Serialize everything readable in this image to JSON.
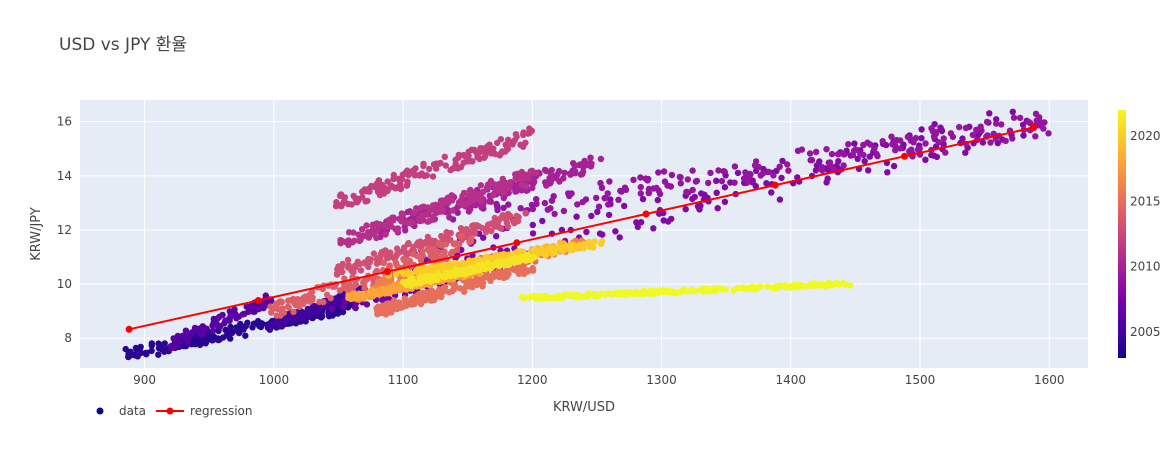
{
  "chart_data": {
    "type": "scatter",
    "title": "USD vs JPY 환율",
    "xlabel": "KRW/USD",
    "ylabel": "KRW/JPY",
    "xlim": [
      850,
      1630
    ],
    "ylim": [
      6.9,
      16.8
    ],
    "x_ticks": [
      900,
      1000,
      1100,
      1200,
      1300,
      1400,
      1500,
      1600
    ],
    "y_ticks": [
      8,
      10,
      12,
      14,
      16
    ],
    "grid": true,
    "legend_position": "bottom-left",
    "colorbar": {
      "title": "",
      "range": [
        2003,
        2022
      ],
      "ticks": [
        2005,
        2010,
        2015,
        2020
      ],
      "colorscale": [
        "#0d0887",
        "#46039f",
        "#7201a8",
        "#9c179e",
        "#bd3786",
        "#d8576b",
        "#ed7953",
        "#fb9f3a",
        "#fdca26",
        "#f0f921"
      ]
    },
    "series": [
      {
        "name": "data",
        "mode": "markers",
        "legend_color": "#0d0887",
        "clusters": [
          {
            "year": 2004,
            "x": [
              890,
              1060
            ],
            "y": [
              7.4,
              9.2
            ],
            "n": 220
          },
          {
            "year": 2005,
            "x": [
              1000,
              1070
            ],
            "y": [
              8.5,
              9.8
            ],
            "n": 120
          },
          {
            "year": 2006,
            "x": [
              920,
              1000
            ],
            "y": [
              7.8,
              9.5
            ],
            "n": 90
          },
          {
            "year": 2007,
            "x": [
              1050,
              1200
            ],
            "y": [
              9.2,
              11.0
            ],
            "n": 80
          },
          {
            "year": 2008,
            "x": [
              1100,
              1580
            ],
            "y": [
              10.5,
              16.1
            ],
            "n": 200
          },
          {
            "year": 2009,
            "x": [
              1150,
              1600
            ],
            "y": [
              12.5,
              16.0
            ],
            "n": 200
          },
          {
            "year": 2010,
            "x": [
              1080,
              1250
            ],
            "y": [
              12.0,
              14.5
            ],
            "n": 180
          },
          {
            "year": 2011,
            "x": [
              1050,
              1200
            ],
            "y": [
              11.5,
              14.0
            ],
            "n": 150
          },
          {
            "year": 2012,
            "x": [
              1050,
              1200
            ],
            "y": [
              13.0,
              15.5
            ],
            "n": 150
          },
          {
            "year": 2013,
            "x": [
              1050,
              1190
            ],
            "y": [
              10.5,
              12.5
            ],
            "n": 150
          },
          {
            "year": 2014,
            "x": [
              1000,
              1150
            ],
            "y": [
              9.0,
              11.5
            ],
            "n": 150
          },
          {
            "year": 2015,
            "x": [
              1080,
              1200
            ],
            "y": [
              9.0,
              10.7
            ],
            "n": 160
          },
          {
            "year": 2016,
            "x": [
              1080,
              1240
            ],
            "y": [
              10.0,
              11.5
            ],
            "n": 150
          },
          {
            "year": 2017,
            "x": [
              1060,
              1160
            ],
            "y": [
              9.5,
              10.5
            ],
            "n": 160
          },
          {
            "year": 2018,
            "x": [
              1060,
              1160
            ],
            "y": [
              9.5,
              10.5
            ],
            "n": 140
          },
          {
            "year": 2019,
            "x": [
              1100,
              1230
            ],
            "y": [
              10.0,
              11.5
            ],
            "n": 150
          },
          {
            "year": 2020,
            "x": [
              1090,
              1250
            ],
            "y": [
              10.3,
              11.5
            ],
            "n": 150
          },
          {
            "year": 2021,
            "x": [
              1100,
              1200
            ],
            "y": [
              10.0,
              11.0
            ],
            "n": 150
          },
          {
            "year": 2022,
            "x": [
              1200,
              1440
            ],
            "y": [
              9.5,
              10.0
            ],
            "n": 200
          }
        ]
      },
      {
        "name": "regression",
        "mode": "lines+markers",
        "color": "#ff0000",
        "x": [
          888,
          988,
          1088,
          1188,
          1288,
          1388,
          1488,
          1588
        ],
        "y": [
          8.33,
          9.395,
          10.46,
          11.525,
          12.59,
          13.655,
          14.72,
          15.785
        ]
      }
    ]
  }
}
